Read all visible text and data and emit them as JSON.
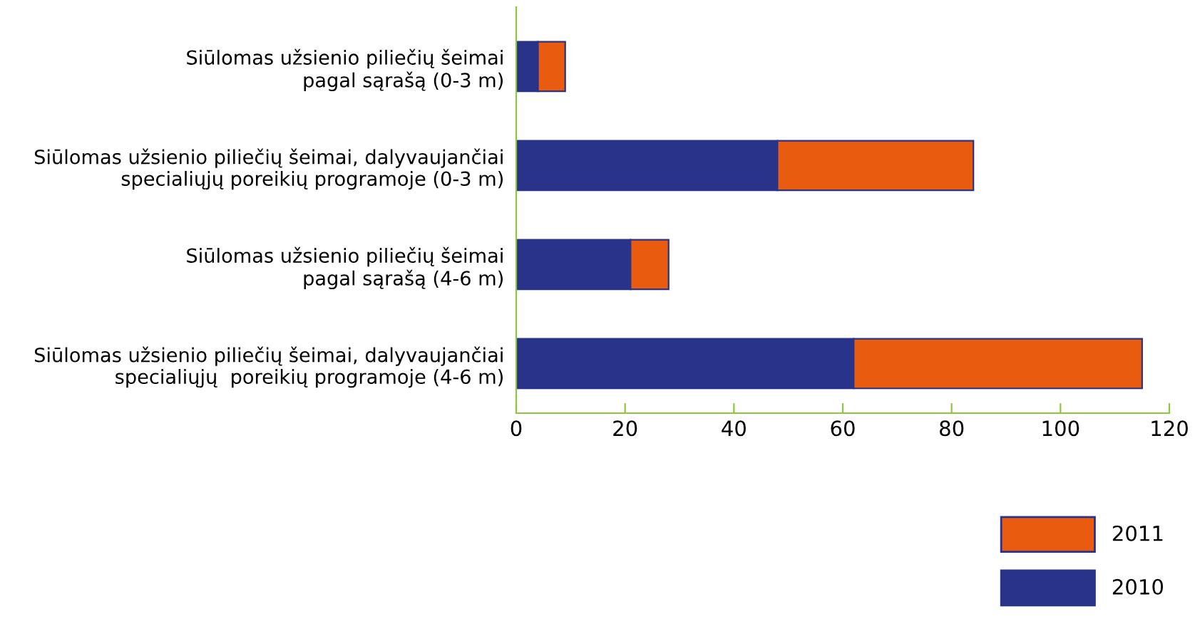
{
  "chart_data": {
    "type": "bar",
    "orientation": "horizontal",
    "stacked": true,
    "legend": "bottom right",
    "grid": false,
    "categories": [
      "Siūlomas užsienio piliečių šeimai\npagal sąrašą (0-3 m)",
      "Siūlomas užsienio piliečių šeimai, dalyvaujančiai\nspecialiųjų poreikių programoje (0-3 m)",
      "Siūlomas užsienio piliečių šeimai\npagal sąrašą (4-6 m)",
      "Siūlomas užsienio piliečių šeimai, dalyvaujančiai\nspecialiųjų  poreikių programoje (4-6 m)"
    ],
    "series": [
      {
        "name": "2010",
        "color": "#283389",
        "values": [
          4,
          48,
          21,
          62
        ]
      },
      {
        "name": "2011",
        "color": "#e95c0f",
        "values": [
          5,
          36,
          7,
          53
        ]
      }
    ],
    "xlim": [
      0,
      120
    ],
    "xticks": [
      0,
      20,
      40,
      60,
      80,
      100,
      120
    ]
  }
}
